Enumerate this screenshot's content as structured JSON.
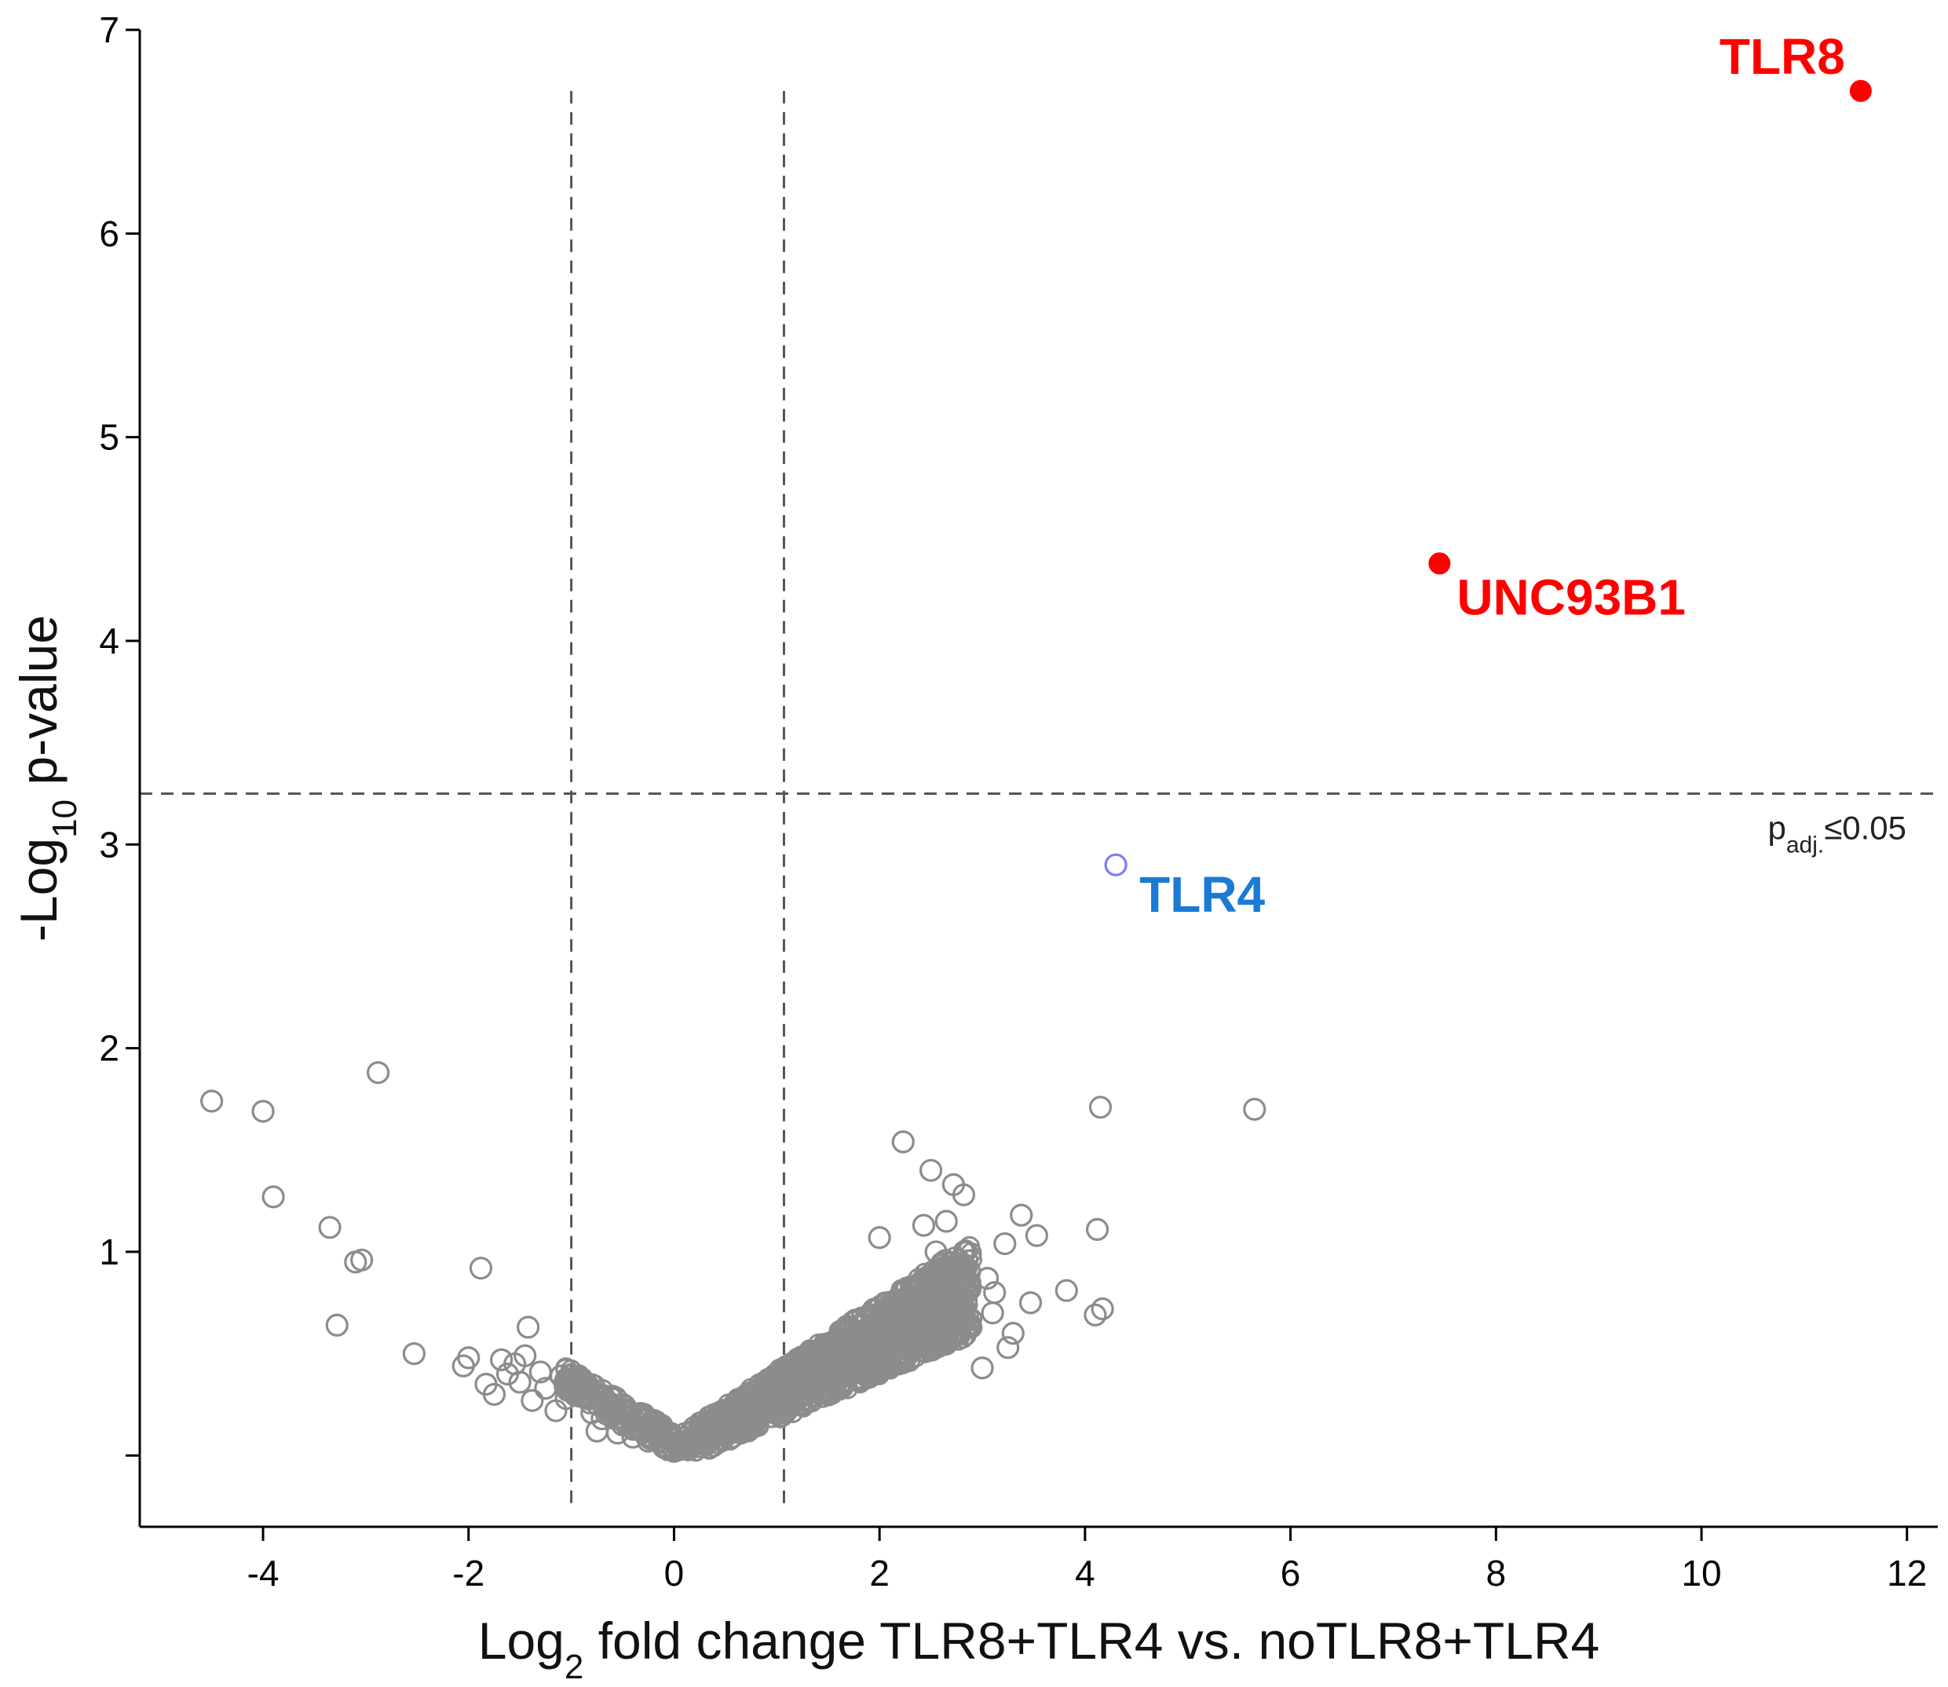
{
  "chart_data": {
    "type": "scatter",
    "title": "",
    "xlabel": {
      "pre": "Log",
      "sub": "2",
      "post": " fold change TLR8+TLR4 vs. noTLR8+TLR4"
    },
    "ylabel": {
      "pre": "-Log",
      "sub": "10",
      "post": " p-value"
    },
    "xlim": [
      -5.2,
      12.3
    ],
    "ylim": [
      -0.35,
      7.0
    ],
    "xticks": [
      -4,
      -2,
      0,
      2,
      4,
      6,
      8,
      10,
      12
    ],
    "yticks": [
      1,
      2,
      3,
      4,
      5,
      6,
      7
    ],
    "xtick_labels": [
      "-4",
      "-2",
      "0",
      "2",
      "4",
      "6",
      "8",
      "10",
      "12"
    ],
    "ytick_labels": [
      "1",
      "2",
      "3",
      "4",
      "5",
      "6",
      "7"
    ],
    "extra_y_minor_tick": 0,
    "grid": false,
    "thresholds": {
      "vertical": [
        -1.0,
        1.07
      ],
      "horizontal": 3.25,
      "vertical_top": 6.7,
      "label": {
        "pre": "p",
        "sub": "adj.",
        "post": "≤0.05"
      }
    },
    "colors": {
      "background_points": "#8c8c8c",
      "highlight_up": "#ff0000",
      "tlr4_marker": "#7b7bff",
      "tlr4_label": "#1a7ad4",
      "axis": "#000000",
      "threshold": "#555555"
    },
    "highlighted": [
      {
        "label": "TLR8",
        "x": 11.55,
        "y": 6.7,
        "style": "filled",
        "color": "#ff0000"
      },
      {
        "label": "UNC93B1",
        "x": 7.45,
        "y": 4.38,
        "style": "filled",
        "color": "#ff0000"
      },
      {
        "label": "TLR4",
        "x": 4.3,
        "y": 2.9,
        "style": "open",
        "color": "#7b7bff",
        "label_color": "#1a7ad4"
      }
    ],
    "series": [
      {
        "style": "open",
        "points": [
          [
            -4.5,
            1.74
          ],
          [
            -4.0,
            1.69
          ],
          [
            -3.9,
            1.27
          ],
          [
            -3.35,
            1.12
          ],
          [
            -3.28,
            0.64
          ],
          [
            -3.1,
            0.95
          ],
          [
            -3.04,
            0.96
          ],
          [
            -2.88,
            1.88
          ],
          [
            -2.53,
            0.5
          ],
          [
            -2.05,
            0.44
          ],
          [
            -2.0,
            0.48
          ],
          [
            -1.88,
            0.92
          ],
          [
            -1.83,
            0.35
          ],
          [
            -1.75,
            0.3
          ],
          [
            -1.68,
            0.47
          ],
          [
            -1.62,
            0.4
          ],
          [
            -1.55,
            0.45
          ],
          [
            -1.5,
            0.36
          ],
          [
            -1.45,
            0.49
          ],
          [
            -1.42,
            0.63
          ],
          [
            -1.38,
            0.27
          ],
          [
            -1.3,
            0.41
          ],
          [
            -1.25,
            0.33
          ],
          [
            -1.15,
            0.22
          ],
          [
            -1.1,
            0.39
          ],
          [
            -1.05,
            0.28
          ],
          [
            -0.95,
            0.3
          ],
          [
            -0.85,
            0.35
          ],
          [
            -0.8,
            0.21
          ],
          [
            -0.75,
            0.12
          ],
          [
            -0.7,
            0.18
          ],
          [
            -0.6,
            0.25
          ],
          [
            -0.55,
            0.11
          ],
          [
            -0.5,
            0.15
          ],
          [
            -0.4,
            0.09
          ],
          [
            -0.35,
            0.14
          ],
          [
            -0.25,
            0.07
          ],
          [
            -0.2,
            0.12
          ],
          [
            -0.1,
            0.04
          ],
          [
            0.0,
            0.02
          ],
          [
            4.1,
            0.69
          ],
          [
            4.17,
            0.72
          ],
          [
            4.12,
            1.11
          ],
          [
            4.15,
            1.71
          ],
          [
            5.65,
            1.7
          ],
          [
            3.82,
            0.81
          ],
          [
            3.38,
            1.18
          ],
          [
            3.53,
            1.08
          ],
          [
            3.22,
            1.04
          ],
          [
            3.47,
            0.75
          ],
          [
            3.25,
            0.53
          ],
          [
            3.0,
            0.43
          ],
          [
            2.23,
            1.54
          ],
          [
            2.5,
            1.4
          ],
          [
            2.72,
            1.33
          ],
          [
            2.82,
            1.28
          ],
          [
            2.65,
            1.15
          ],
          [
            2.43,
            1.13
          ],
          [
            2.0,
            1.07
          ],
          [
            2.55,
            1.0
          ],
          [
            3.05,
            0.87
          ],
          [
            3.12,
            0.8
          ],
          [
            3.3,
            0.6
          ],
          [
            3.1,
            0.7
          ]
        ]
      }
    ],
    "point_cloud_note_none": ""
  }
}
